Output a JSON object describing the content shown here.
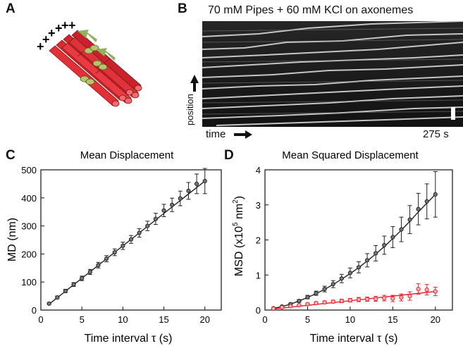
{
  "panels": {
    "A": {
      "letter": "A",
      "plus_signs": [
        "+",
        "+",
        "+",
        "+",
        "+",
        "+"
      ]
    },
    "B": {
      "letter": "B",
      "title": "70 mM Pipes + 60 mM KCl on axonemes",
      "y_label": "position",
      "x_label": "time",
      "duration_label": "275 s"
    },
    "C": {
      "letter": "C"
    },
    "D": {
      "letter": "D"
    }
  },
  "chart_data": [
    {
      "type": "line",
      "title": "Mean Displacement",
      "xlabel": "Time interval τ (s)",
      "ylabel": "MD (nm)",
      "xlim": [
        0,
        22
      ],
      "ylim": [
        0,
        500
      ],
      "xticks": [
        0,
        5,
        10,
        15,
        20
      ],
      "yticks": [
        0,
        100,
        200,
        300,
        400,
        500
      ],
      "series": [
        {
          "color": "#222222",
          "x": [
            1,
            2,
            3,
            4,
            5,
            6,
            7,
            8,
            9,
            10,
            11,
            12,
            13,
            14,
            15,
            16,
            17,
            18,
            19,
            20
          ],
          "y": [
            23,
            45,
            68,
            91,
            113,
            136,
            160,
            183,
            206,
            229,
            252,
            275,
            300,
            325,
            355,
            375,
            398,
            425,
            450,
            460
          ],
          "err": [
            3,
            5,
            6,
            7,
            8,
            9,
            10,
            11,
            12,
            13,
            14,
            15,
            17,
            20,
            22,
            24,
            26,
            30,
            35,
            45
          ]
        }
      ],
      "fit": {
        "color": "#222222",
        "x": [
          1,
          20
        ],
        "y": [
          21,
          460
        ]
      }
    },
    {
      "type": "line",
      "title": "Mean Squared Displacement",
      "xlabel": "Time interval τ (s)",
      "ylabel": "MSD (x10",
      "ylabel_exp": "5",
      "ylabel_tail": " nm",
      "ylabel_exp2": "2",
      "ylabel_close": ")",
      "xlim": [
        0,
        22
      ],
      "ylim": [
        0,
        4
      ],
      "xticks": [
        0,
        5,
        10,
        15,
        20
      ],
      "yticks": [
        0,
        1,
        2,
        3,
        4
      ],
      "series": [
        {
          "color": "#222222",
          "x": [
            1,
            2,
            3,
            4,
            5,
            6,
            7,
            8,
            9,
            10,
            11,
            12,
            13,
            14,
            15,
            16,
            17,
            18,
            19,
            20
          ],
          "y": [
            0.05,
            0.1,
            0.17,
            0.26,
            0.37,
            0.48,
            0.6,
            0.74,
            0.9,
            1.06,
            1.22,
            1.42,
            1.62,
            1.85,
            2.08,
            2.3,
            2.58,
            2.88,
            3.1,
            3.3
          ],
          "err": [
            0.01,
            0.02,
            0.03,
            0.04,
            0.05,
            0.06,
            0.08,
            0.1,
            0.12,
            0.14,
            0.16,
            0.19,
            0.22,
            0.26,
            0.3,
            0.35,
            0.4,
            0.45,
            0.5,
            0.65
          ]
        },
        {
          "color": "#e8202a",
          "x": [
            1,
            2,
            3,
            4,
            5,
            6,
            7,
            8,
            9,
            10,
            11,
            12,
            13,
            14,
            15,
            16,
            17,
            18,
            19,
            20
          ],
          "y": [
            0.04,
            0.08,
            0.11,
            0.14,
            0.17,
            0.2,
            0.22,
            0.24,
            0.26,
            0.28,
            0.3,
            0.31,
            0.32,
            0.34,
            0.33,
            0.36,
            0.4,
            0.6,
            0.58,
            0.53
          ],
          "err": [
            0.01,
            0.01,
            0.02,
            0.02,
            0.03,
            0.03,
            0.04,
            0.04,
            0.05,
            0.05,
            0.06,
            0.06,
            0.07,
            0.08,
            0.09,
            0.1,
            0.12,
            0.15,
            0.15,
            0.12
          ]
        }
      ],
      "fits": [
        {
          "color": "#222222",
          "x": [
            1,
            2,
            3,
            4,
            5,
            6,
            7,
            8,
            9,
            10,
            11,
            12,
            13,
            14,
            15,
            16,
            17,
            18,
            19,
            20
          ],
          "y": [
            0.05,
            0.1,
            0.17,
            0.26,
            0.36,
            0.47,
            0.59,
            0.73,
            0.88,
            1.04,
            1.21,
            1.4,
            1.6,
            1.81,
            2.04,
            2.28,
            2.53,
            2.8,
            3.05,
            3.3
          ]
        },
        {
          "color": "#e8202a",
          "x": [
            1,
            20
          ],
          "y": [
            0.03,
            0.53
          ]
        }
      ]
    }
  ]
}
